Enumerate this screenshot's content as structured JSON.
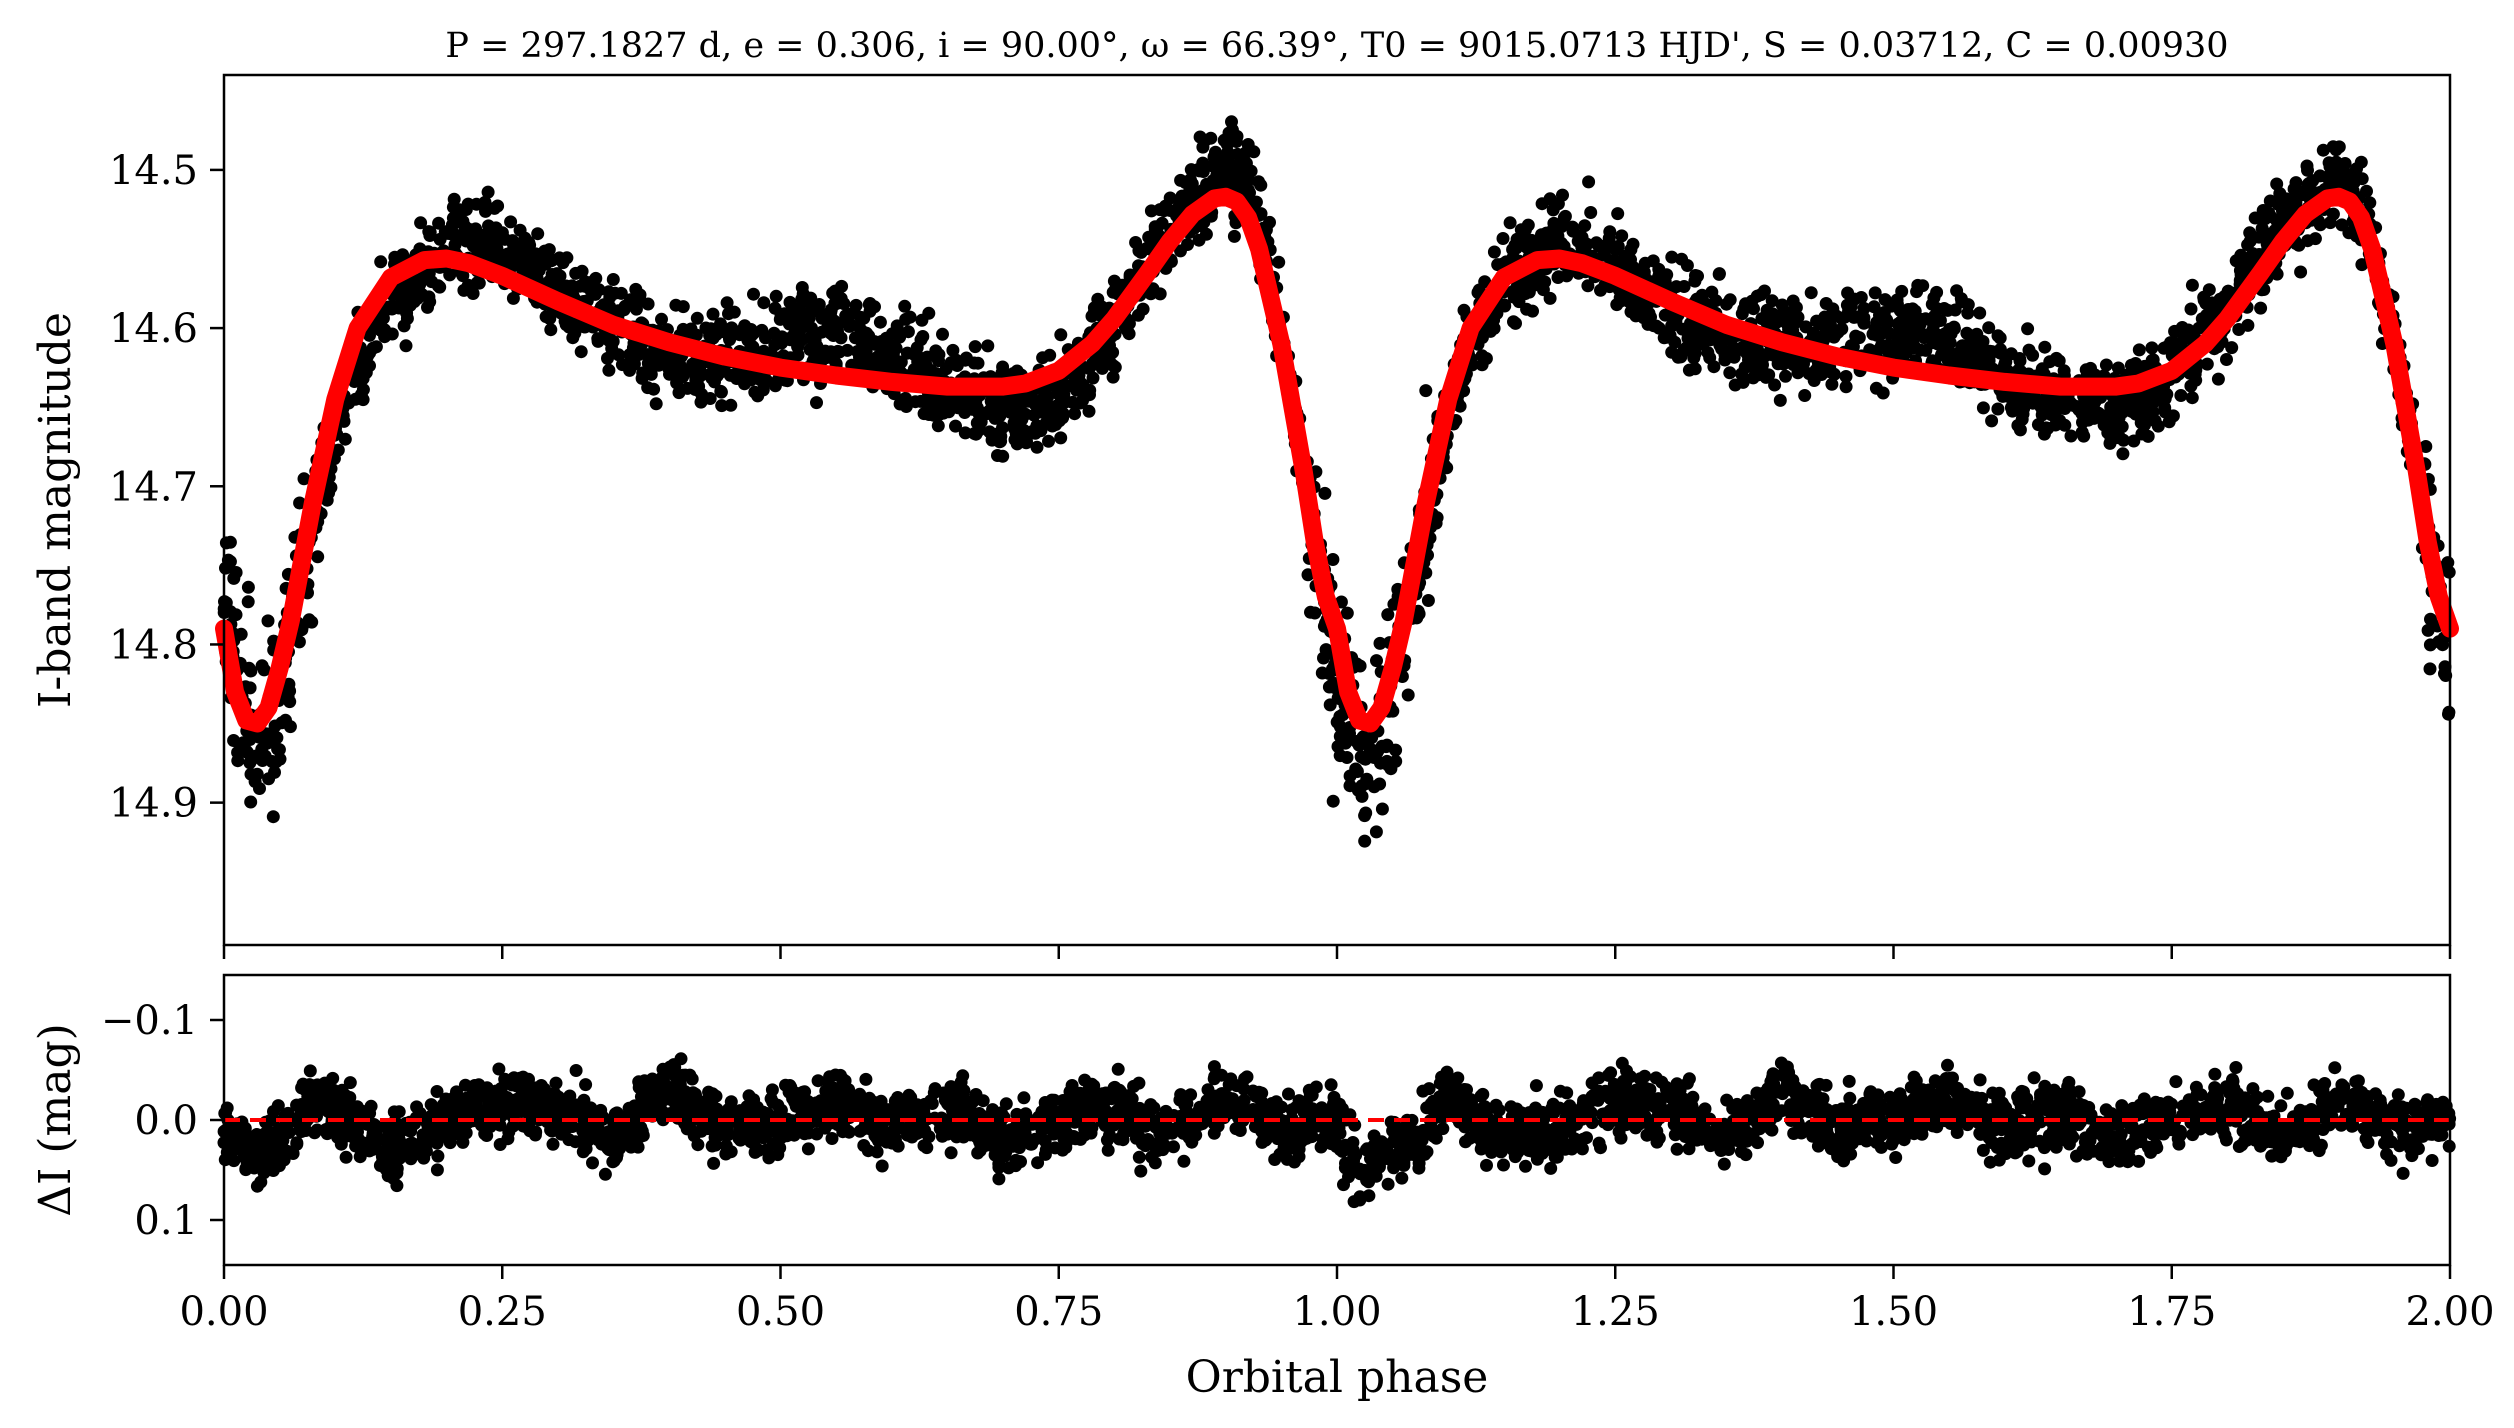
{
  "chart_data": [
    {
      "type": "scatter",
      "title": "P = 297.1827 d, e = 0.306, i = 90.00°, ω = 66.39°, T0 = 9015.0713 HJD', S = 0.03712, C = 0.00930",
      "xlabel": "",
      "ylabel": "I-band magnitude",
      "xlim": [
        0,
        2
      ],
      "ylim": [
        14.99,
        14.44
      ],
      "y_inverted": true,
      "y_ticks": [
        "14.5",
        "14.6",
        "14.7",
        "14.8",
        "14.9"
      ],
      "grid": false,
      "series": [
        {
          "role": "observations",
          "color": "#000000",
          "x": [
            0.0,
            0.02,
            0.03,
            0.05,
            0.08,
            0.1,
            0.12,
            0.15,
            0.2,
            0.25,
            0.3,
            0.35,
            0.4,
            0.45,
            0.5,
            0.55,
            0.6,
            0.65,
            0.7,
            0.75,
            0.8,
            0.85,
            0.88,
            0.9,
            0.92,
            0.95,
            0.98,
            1.0,
            1.02,
            1.03,
            1.05,
            1.08,
            1.1,
            1.12,
            1.15,
            1.2,
            1.25,
            1.3,
            1.35,
            1.4,
            1.45,
            1.5,
            1.55,
            1.6,
            1.65,
            1.7,
            1.75,
            1.8,
            1.85,
            1.88,
            1.9,
            1.92,
            1.95,
            1.98,
            2.0
          ],
          "y": [
            14.78,
            14.84,
            14.86,
            14.82,
            14.72,
            14.65,
            14.61,
            14.58,
            14.56,
            14.57,
            14.58,
            14.59,
            14.6,
            14.61,
            14.62,
            14.62,
            14.63,
            14.63,
            14.64,
            14.63,
            14.6,
            14.55,
            14.53,
            14.51,
            14.52,
            14.6,
            14.72,
            14.81,
            14.85,
            14.86,
            14.82,
            14.72,
            14.65,
            14.61,
            14.58,
            14.56,
            14.57,
            14.58,
            14.59,
            14.6,
            14.61,
            14.62,
            14.62,
            14.63,
            14.63,
            14.64,
            14.63,
            14.6,
            14.55,
            14.53,
            14.51,
            14.52,
            14.6,
            14.72,
            14.81
          ]
        },
        {
          "role": "model",
          "color": "#ff0000",
          "x": [
            0.0,
            0.01,
            0.02,
            0.03,
            0.04,
            0.05,
            0.06,
            0.08,
            0.1,
            0.12,
            0.15,
            0.18,
            0.2,
            0.22,
            0.25,
            0.3,
            0.35,
            0.4,
            0.45,
            0.5,
            0.55,
            0.6,
            0.65,
            0.7,
            0.72,
            0.75,
            0.78,
            0.8,
            0.83,
            0.85,
            0.87,
            0.89,
            0.9,
            0.91,
            0.92,
            0.93,
            0.95,
            0.97,
            0.98,
            0.99,
            1.0,
            1.01,
            1.02,
            1.03,
            1.04,
            1.05,
            1.06,
            1.08,
            1.1,
            1.12,
            1.15,
            1.18,
            1.2,
            1.22,
            1.25,
            1.3,
            1.35,
            1.4,
            1.45,
            1.5,
            1.55,
            1.6,
            1.65,
            1.7,
            1.72,
            1.75,
            1.78,
            1.8,
            1.83,
            1.85,
            1.87,
            1.89,
            1.9,
            1.91,
            1.92,
            1.93,
            1.95,
            1.97,
            1.98,
            1.99,
            2.0
          ],
          "y": [
            14.79,
            14.83,
            14.848,
            14.85,
            14.84,
            14.815,
            14.785,
            14.71,
            14.645,
            14.6,
            14.568,
            14.557,
            14.556,
            14.559,
            14.567,
            14.583,
            14.598,
            14.609,
            14.618,
            14.625,
            14.63,
            14.634,
            14.637,
            14.637,
            14.635,
            14.627,
            14.61,
            14.594,
            14.565,
            14.545,
            14.528,
            14.518,
            14.517,
            14.52,
            14.53,
            14.55,
            14.61,
            14.69,
            14.735,
            14.77,
            14.79,
            14.83,
            14.848,
            14.85,
            14.84,
            14.815,
            14.785,
            14.71,
            14.645,
            14.6,
            14.568,
            14.557,
            14.556,
            14.559,
            14.567,
            14.583,
            14.598,
            14.609,
            14.618,
            14.625,
            14.63,
            14.634,
            14.637,
            14.637,
            14.635,
            14.627,
            14.61,
            14.594,
            14.565,
            14.545,
            14.528,
            14.518,
            14.517,
            14.52,
            14.53,
            14.55,
            14.61,
            14.69,
            14.735,
            14.77,
            14.79
          ]
        }
      ]
    },
    {
      "type": "scatter",
      "title": "",
      "xlabel": "Orbital phase",
      "ylabel": "ΔI (mag)",
      "xlim": [
        0,
        2
      ],
      "ylim": [
        0.145,
        -0.145
      ],
      "y_inverted": true,
      "x_ticks": [
        "0.00",
        "0.25",
        "0.50",
        "0.75",
        "1.00",
        "1.25",
        "1.50",
        "1.75",
        "2.00"
      ],
      "y_ticks": [
        "−0.1",
        "0.0",
        "0.1"
      ],
      "grid": false,
      "series": [
        {
          "role": "residuals",
          "color": "#000000",
          "x": [
            0.0,
            0.02,
            0.05,
            0.08,
            0.1,
            0.15,
            0.2,
            0.25,
            0.3,
            0.35,
            0.4,
            0.45,
            0.5,
            0.55,
            0.6,
            0.65,
            0.7,
            0.75,
            0.8,
            0.85,
            0.9,
            0.95,
            1.0,
            1.02,
            1.05,
            1.08,
            1.1,
            1.15,
            1.2,
            1.25,
            1.3,
            1.35,
            1.4,
            1.45,
            1.5,
            1.55,
            1.6,
            1.65,
            1.7,
            1.75,
            1.8,
            1.85,
            1.9,
            1.95,
            2.0
          ],
          "y": [
            0.01,
            0.04,
            0.02,
            -0.02,
            -0.01,
            0.03,
            0.0,
            -0.02,
            -0.01,
            0.02,
            -0.03,
            0.01,
            0.0,
            -0.02,
            0.01,
            -0.01,
            0.02,
            0.0,
            -0.01,
            0.02,
            -0.02,
            0.01,
            0.0,
            0.05,
            0.03,
            0.01,
            -0.02,
            0.02,
            0.01,
            -0.02,
            -0.01,
            0.02,
            -0.03,
            0.01,
            0.0,
            -0.02,
            0.01,
            -0.01,
            0.02,
            0.0,
            -0.01,
            0.02,
            -0.02,
            0.01,
            0.0
          ]
        },
        {
          "role": "zero-line",
          "color": "#ff0000",
          "x": [
            0,
            2
          ],
          "y": [
            0.0,
            0.0
          ]
        }
      ]
    }
  ]
}
